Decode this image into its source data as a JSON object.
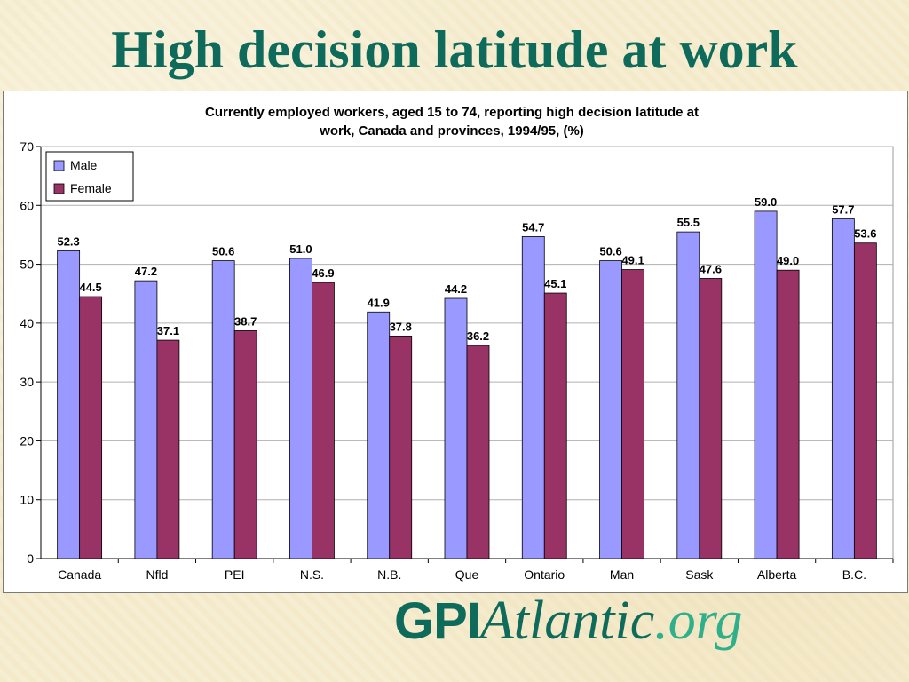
{
  "slide": {
    "title": "High decision latitude at work"
  },
  "logo": {
    "part1": "GPI",
    "part2": "Atlantic",
    "part3": ".org"
  },
  "colors": {
    "male": "#9999ff",
    "female": "#993366",
    "title": "#0e6b5b",
    "accent": "#2fb08b"
  },
  "chart_data": {
    "type": "bar",
    "title_lines": [
      "Currently employed workers, aged 15 to 74, reporting high decision latitude at",
      "work, Canada and provinces, 1994/95, (%)"
    ],
    "categories": [
      "Canada",
      "Nfld",
      "PEI",
      "N.S.",
      "N.B.",
      "Que",
      "Ontario",
      "Man",
      "Sask",
      "Alberta",
      "B.C."
    ],
    "series": [
      {
        "name": "Male",
        "values": [
          52.3,
          47.2,
          50.6,
          51.0,
          41.9,
          44.2,
          54.7,
          50.6,
          55.5,
          59.0,
          57.7
        ]
      },
      {
        "name": "Female",
        "values": [
          44.5,
          37.1,
          38.7,
          46.9,
          37.8,
          36.2,
          45.1,
          49.1,
          47.6,
          49.0,
          53.6
        ]
      }
    ],
    "value_labels": [
      [
        "52.3",
        "47.2",
        "50.6",
        "51.0",
        "41.9",
        "44.2",
        "54.7",
        "50.6",
        "55.5",
        "59.0",
        "57.7"
      ],
      [
        "44.5",
        "37.1",
        "38.7",
        "46.9",
        "37.8",
        "36.2",
        "45.1",
        "49.1",
        "47.6",
        "49.0",
        "53.6"
      ]
    ],
    "yticks": [
      "0",
      "10",
      "20",
      "30",
      "40",
      "50",
      "60",
      "70"
    ],
    "ylim": [
      0,
      70
    ],
    "grid": true,
    "legend": "top-left"
  }
}
